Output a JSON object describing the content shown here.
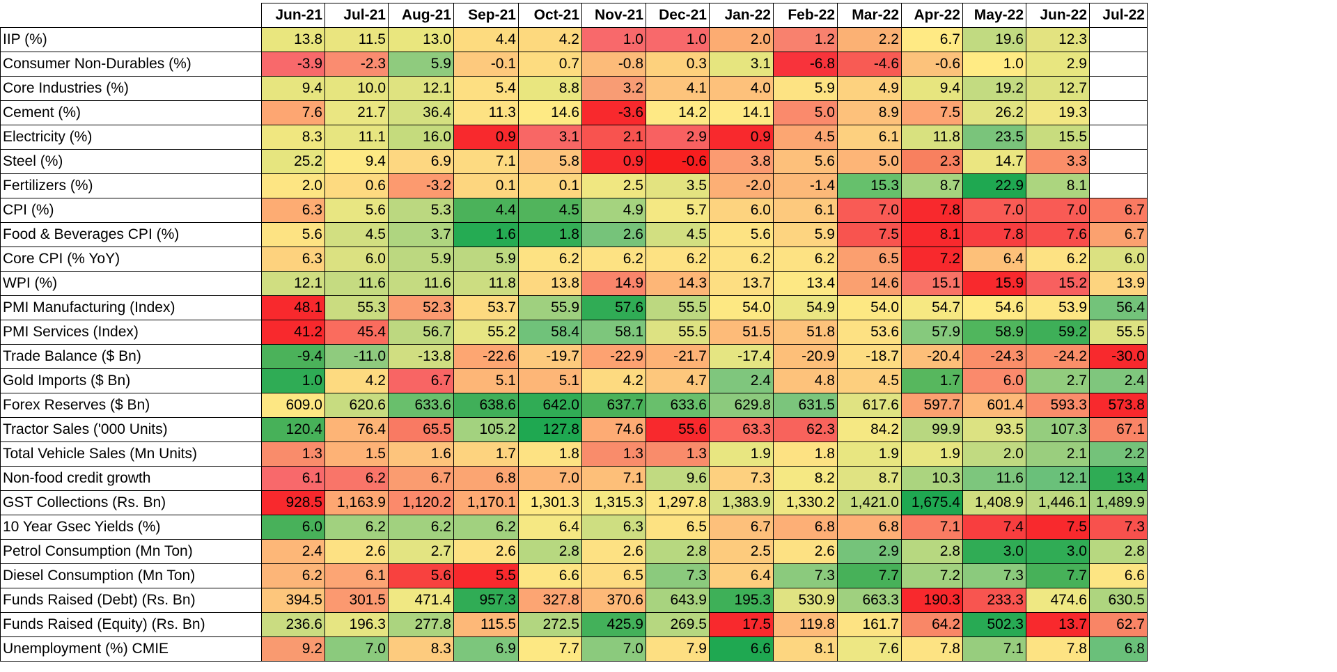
{
  "chart_data": {
    "type": "heatmap",
    "categories": [
      "Jun-21",
      "Jul-21",
      "Aug-21",
      "Sep-21",
      "Oct-21",
      "Nov-21",
      "Dec-21",
      "Jan-22",
      "Feb-22",
      "Mar-22",
      "Apr-22",
      "May-22",
      "Jun-22",
      "Jul-22"
    ],
    "rows": [
      {
        "name": "IIP (%)",
        "values": [
          "13.8",
          "11.5",
          "13.0",
          "4.4",
          "4.2",
          "1.0",
          "1.0",
          "2.0",
          "1.2",
          "2.2",
          "6.7",
          "19.6",
          "12.3",
          null
        ],
        "colors": [
          "#E9E67E",
          "#EAE57F",
          "#E9E67E",
          "#FDDB7F",
          "#FDD97E",
          "#F8696B",
          "#F8696B",
          "#FCAC72",
          "#F8816E",
          "#FBB174",
          "#FFEA84",
          "#C1DA81",
          "#E3E380",
          null
        ]
      },
      {
        "name": "Consumer Non-Durables (%)",
        "values": [
          "-3.9",
          "-2.3",
          "5.9",
          "-0.1",
          "0.7",
          "-0.8",
          "0.3",
          "3.1",
          "-6.8",
          "-4.6",
          "-0.6",
          "1.0",
          "2.9",
          null
        ],
        "colors": [
          "#F8696B",
          "#FA8C70",
          "#8FCB7E",
          "#FDC97D",
          "#FDDC80",
          "#FCBB79",
          "#FDD17D",
          "#E6E57F",
          "#F8333B",
          "#F85B54",
          "#FCC27B",
          "#FFEB84",
          "#E8E680",
          null
        ]
      },
      {
        "name": "Core Industries (%)",
        "values": [
          "9.4",
          "10.0",
          "12.1",
          "5.4",
          "8.8",
          "3.2",
          "4.1",
          "4.0",
          "5.9",
          "4.9",
          "9.4",
          "19.2",
          "12.7",
          null
        ],
        "colors": [
          "#E7E57F",
          "#E6E57F",
          "#DFE380",
          "#FDDF82",
          "#E9E67F",
          "#F89C74",
          "#FDC47C",
          "#FDC17B",
          "#FDE383",
          "#FDD27F",
          "#E7E57F",
          "#C3DB81",
          "#DDE27F",
          null
        ]
      },
      {
        "name": "Cement (%)",
        "values": [
          "7.6",
          "21.7",
          "36.4",
          "11.3",
          "14.6",
          "-3.6",
          "14.2",
          "14.1",
          "5.0",
          "8.9",
          "7.5",
          "26.2",
          "19.3",
          null
        ],
        "colors": [
          "#FDA672",
          "#EAE682",
          "#D4E080",
          "#FDE283",
          "#FEEA84",
          "#F8292D",
          "#FEE985",
          "#FEE985",
          "#FA8A6C",
          "#FDC17B",
          "#FDA472",
          "#E1E381",
          "#F2E783",
          null
        ]
      },
      {
        "name": "Electricity (%)",
        "values": [
          "8.3",
          "11.1",
          "16.0",
          "0.9",
          "3.1",
          "2.1",
          "2.9",
          "0.9",
          "4.5",
          "6.1",
          "11.8",
          "23.5",
          "15.5",
          null
        ],
        "colors": [
          "#F0E780",
          "#E7E580",
          "#C5DB7D",
          "#F8292D",
          "#F86765",
          "#F8534F",
          "#F86161",
          "#F8292D",
          "#FCA672",
          "#FDD07F",
          "#D8E17F",
          "#7AC47B",
          "#C8DC7E",
          null
        ]
      },
      {
        "name": "Steel (%)",
        "values": [
          "25.2",
          "9.4",
          "6.9",
          "7.1",
          "5.8",
          "0.9",
          "-0.6",
          "3.8",
          "5.6",
          "5.0",
          "2.3",
          "14.7",
          "3.3",
          null
        ],
        "colors": [
          "#E6E57F",
          "#FDE984",
          "#FDD781",
          "#FDDA81",
          "#FDC47C",
          "#F8292D",
          "#F81E1F",
          "#FB9B71",
          "#FDC07B",
          "#FDB577",
          "#F8805F",
          "#EBE681",
          "#FA8E69",
          null
        ]
      },
      {
        "name": "Fertilizers (%)",
        "values": [
          "2.0",
          "0.6",
          "-3.2",
          "0.1",
          "0.1",
          "2.5",
          "3.5",
          "-2.0",
          "-1.4",
          "15.3",
          "8.7",
          "22.9",
          "8.1",
          null
        ],
        "colors": [
          "#FDE583",
          "#FDDA80",
          "#FC9A6F",
          "#FDD67F",
          "#FDD67F",
          "#F0E781",
          "#E3E380",
          "#FCAF75",
          "#FCB978",
          "#66C06C",
          "#A5D37F",
          "#1FA851",
          "#ACD57F",
          null
        ]
      },
      {
        "name": "CPI (%)",
        "values": [
          "6.3",
          "5.6",
          "5.3",
          "4.4",
          "4.5",
          "4.9",
          "5.7",
          "6.0",
          "6.1",
          "7.0",
          "7.8",
          "7.0",
          "7.0",
          "6.7"
        ],
        "colors": [
          "#FDAC73",
          "#E8E682",
          "#BBD880",
          "#4BB25A",
          "#51B45C",
          "#A5D37F",
          "#F4E883",
          "#FDD37F",
          "#FDC97D",
          "#F95B55",
          "#F8292D",
          "#F95B55",
          "#F95B55",
          "#FA7A62"
        ]
      },
      {
        "name": "Food & Beverages CPI (%)",
        "values": [
          "5.6",
          "4.5",
          "3.7",
          "1.6",
          "1.8",
          "2.6",
          "4.5",
          "5.6",
          "5.9",
          "7.5",
          "8.1",
          "7.8",
          "7.6",
          "6.7"
        ],
        "colors": [
          "#FDE383",
          "#D2DF81",
          "#AFD580",
          "#25AB53",
          "#33AE56",
          "#76C37A",
          "#D2DF81",
          "#FDE383",
          "#FDD480",
          "#F8544F",
          "#F8292D",
          "#F83D40",
          "#F84D4B",
          "#FBA16F"
        ]
      },
      {
        "name": "Core CPI (% YoY)",
        "values": [
          "6.3",
          "6.0",
          "5.9",
          "5.9",
          "6.2",
          "6.2",
          "6.2",
          "6.2",
          "6.2",
          "6.5",
          "7.2",
          "6.4",
          "6.2",
          "6.0"
        ],
        "colors": [
          "#FDD27E",
          "#DBE181",
          "#BCD880",
          "#BCD880",
          "#FDE283",
          "#FDE283",
          "#FDE283",
          "#FDE283",
          "#FDE283",
          "#FB9F6F",
          "#F8292D",
          "#FDC079",
          "#FDE283",
          "#DBE181"
        ]
      },
      {
        "name": "WPI (%)",
        "values": [
          "12.1",
          "11.6",
          "11.6",
          "11.8",
          "13.8",
          "14.9",
          "14.3",
          "13.7",
          "13.4",
          "14.6",
          "15.1",
          "15.9",
          "15.2",
          "13.9"
        ],
        "colors": [
          "#D0DE81",
          "#C5DB81",
          "#C5DB81",
          "#CCDD81",
          "#FDD880",
          "#FA856B",
          "#FDB677",
          "#FDDE82",
          "#FDE884",
          "#FAA070",
          "#F97266",
          "#F8292D",
          "#F8605F",
          "#FDD47F"
        ]
      },
      {
        "name": "PMI Manufacturing (Index)",
        "values": [
          "48.1",
          "55.3",
          "52.3",
          "53.7",
          "55.9",
          "57.6",
          "55.5",
          "54.0",
          "54.9",
          "54.0",
          "54.7",
          "54.6",
          "53.9",
          "56.4"
        ],
        "colors": [
          "#F8292D",
          "#CADC80",
          "#FB9B70",
          "#FDDA80",
          "#9FD07F",
          "#30AC55",
          "#BCD880",
          "#FDE883",
          "#EBE682",
          "#FDE883",
          "#F6E882",
          "#FEEA84",
          "#FDE683",
          "#73C37A"
        ]
      },
      {
        "name": "PMI Services (Index)",
        "values": [
          "41.2",
          "45.4",
          "56.7",
          "55.2",
          "58.4",
          "58.1",
          "55.5",
          "51.5",
          "51.8",
          "53.6",
          "57.9",
          "58.9",
          "59.2",
          "55.5"
        ],
        "colors": [
          "#F8292D",
          "#FA6C5E",
          "#BDD880",
          "#E6E583",
          "#70C27A",
          "#7DC67C",
          "#DDE282",
          "#FDBB79",
          "#FDC27B",
          "#FDE183",
          "#86C97D",
          "#50B65D",
          "#3EAF58",
          "#DDE282"
        ]
      },
      {
        "name": "Trade Balance ($ Bn)",
        "values": [
          "-9.4",
          "-11.0",
          "-13.8",
          "-22.6",
          "-19.7",
          "-22.9",
          "-21.7",
          "-17.4",
          "-20.9",
          "-18.7",
          "-20.4",
          "-24.3",
          "-24.2",
          "-30.0"
        ],
        "colors": [
          "#4BB25A",
          "#8FCB7E",
          "#D0DE81",
          "#FDA672",
          "#FDCA7D",
          "#FDA271",
          "#FDB275",
          "#E5E582",
          "#FDBF79",
          "#FDDD82",
          "#FDBF79",
          "#FA8E69",
          "#FA8E69",
          "#F8292D"
        ]
      },
      {
        "name": "Gold Imports ($ Bn)",
        "values": [
          "1.0",
          "4.2",
          "6.7",
          "5.1",
          "5.1",
          "4.2",
          "4.7",
          "2.4",
          "4.8",
          "4.5",
          "1.7",
          "6.0",
          "2.7",
          "2.4"
        ],
        "colors": [
          "#2FAC55",
          "#FDDA80",
          "#F86564",
          "#FDB677",
          "#FDB677",
          "#FDDA80",
          "#FDC77C",
          "#7FC67D",
          "#FDC27B",
          "#FDCF7E",
          "#57B75E",
          "#FA8A6C",
          "#92CC7E",
          "#7FC67D"
        ]
      },
      {
        "name": "Forex Reserves ($ Bn)",
        "values": [
          "609.0",
          "620.6",
          "633.6",
          "638.6",
          "642.0",
          "637.7",
          "633.6",
          "629.8",
          "631.5",
          "617.6",
          "597.7",
          "601.4",
          "593.3",
          "573.8"
        ],
        "colors": [
          "#FDE783",
          "#C7DC80",
          "#69BF6C",
          "#40AF59",
          "#30AC55",
          "#4AB25A",
          "#69BF6C",
          "#8CCA7D",
          "#7BC57C",
          "#E0E382",
          "#FBA070",
          "#FDB978",
          "#FA8C6B",
          "#F8292D"
        ]
      },
      {
        "name": "Tractor Sales ('000 Units)",
        "values": [
          "120.4",
          "76.4",
          "65.5",
          "105.2",
          "127.8",
          "74.6",
          "55.6",
          "63.3",
          "62.3",
          "84.2",
          "99.9",
          "93.5",
          "107.3",
          "67.1"
        ],
        "colors": [
          "#47B159",
          "#FDB476",
          "#F97A63",
          "#A3D27F",
          "#1FA851",
          "#FDAB74",
          "#F8292D",
          "#FA6A5F",
          "#F8635C",
          "#F5E883",
          "#B8D780",
          "#DCE282",
          "#95CD7E",
          "#F98466"
        ]
      },
      {
        "name": "Total Vehicle Sales (Mn Units)",
        "values": [
          "1.3",
          "1.5",
          "1.6",
          "1.7",
          "1.8",
          "1.3",
          "1.3",
          "1.9",
          "1.8",
          "1.9",
          "1.9",
          "2.0",
          "2.1",
          "2.2"
        ],
        "colors": [
          "#F98C6B",
          "#FDB276",
          "#FDC47C",
          "#FDD37F",
          "#FDE283",
          "#F98C6B",
          "#F98C6B",
          "#E8E681",
          "#FDE283",
          "#E8E681",
          "#E8E681",
          "#C1DA81",
          "#9ACE7E",
          "#74C27A"
        ]
      },
      {
        "name": "Non-food credit growth",
        "values": [
          "6.1",
          "6.2",
          "6.7",
          "6.8",
          "7.0",
          "7.1",
          "9.6",
          "7.3",
          "8.2",
          "8.7",
          "10.3",
          "11.6",
          "12.1",
          "13.4"
        ],
        "colors": [
          "#F8696B",
          "#F97569",
          "#FA9C70",
          "#FBA572",
          "#FDB677",
          "#FDBF79",
          "#C1DA81",
          "#FDD07F",
          "#F5E883",
          "#E0E382",
          "#ABD47F",
          "#7DC67D",
          "#6AC07A",
          "#2FAC55"
        ]
      },
      {
        "name": "GST Collections (Rs. Bn)",
        "values": [
          "928.5",
          "1,163.9",
          "1,120.2",
          "1,170.1",
          "1,301.3",
          "1,315.3",
          "1,297.8",
          "1,383.9",
          "1,330.2",
          "1,421.0",
          "1,675.4",
          "1,408.9",
          "1,446.1",
          "1,489.9"
        ],
        "colors": [
          "#F8292D",
          "#FDA772",
          "#FB8A6B",
          "#FDAA73",
          "#FEE984",
          "#F5E883",
          "#FDE583",
          "#D7E082",
          "#F0E783",
          "#C8DC80",
          "#1FA851",
          "#CFDE80",
          "#BDD880",
          "#A7D37F"
        ]
      },
      {
        "name": "10 Year Gsec Yields (%)",
        "values": [
          "6.0",
          "6.2",
          "6.2",
          "6.2",
          "6.4",
          "6.3",
          "6.5",
          "6.7",
          "6.8",
          "6.8",
          "7.1",
          "7.4",
          "7.5",
          "7.3"
        ],
        "colors": [
          "#48B15A",
          "#A1D17F",
          "#A1D17F",
          "#A1D17F",
          "#F5E883",
          "#CEDE81",
          "#FDE282",
          "#FDC07B",
          "#FDAF76",
          "#FDAF76",
          "#FA7C63",
          "#F83E3F",
          "#F8292D",
          "#F8514D"
        ]
      },
      {
        "name": "Petrol Consumption (Mn Ton)",
        "values": [
          "2.4",
          "2.6",
          "2.7",
          "2.6",
          "2.8",
          "2.6",
          "2.8",
          "2.5",
          "2.6",
          "2.9",
          "2.8",
          "3.0",
          "3.0",
          "2.8"
        ],
        "colors": [
          "#FDB778",
          "#FDE183",
          "#E3E482",
          "#FDE183",
          "#B7D880",
          "#FDE183",
          "#B7D880",
          "#FDCB7D",
          "#FDE183",
          "#75C37A",
          "#B7D880",
          "#30AC55",
          "#30AC55",
          "#B7D880"
        ]
      },
      {
        "name": "Diesel Consumption (Mn Ton)",
        "values": [
          "6.2",
          "6.1",
          "5.6",
          "5.5",
          "6.6",
          "6.5",
          "7.3",
          "6.4",
          "7.3",
          "7.7",
          "7.2",
          "7.3",
          "7.7",
          "6.6"
        ],
        "colors": [
          "#FCB578",
          "#FCA574",
          "#F8413F",
          "#F8292D",
          "#FDE583",
          "#FDDC81",
          "#8BCA7D",
          "#FDCE7E",
          "#8BCA7D",
          "#47B159",
          "#A2D17F",
          "#8BCA7D",
          "#47B159",
          "#FDE583"
        ]
      },
      {
        "name": "Funds Raised (Debt) (Rs. Bn)",
        "values": [
          "394.5",
          "301.5",
          "471.4",
          "957.3",
          "327.8",
          "370.6",
          "643.9",
          "195.3",
          "530.9",
          "663.3",
          "190.3",
          "233.3",
          "474.6",
          "630.5"
        ],
        "colors": [
          "#FDC67C",
          "#FB9970",
          "#F0E883",
          "#30AC55",
          "#FCA573",
          "#FDB978",
          "#A8D37F",
          "#3EB058",
          "#E0E382",
          "#9FD07F",
          "#F8292D",
          "#F85550",
          "#EFE883",
          "#AED57F"
        ]
      },
      {
        "name": "Funds Raised (Equity) (Rs. Bn)",
        "values": [
          "236.6",
          "196.3",
          "277.8",
          "115.5",
          "272.5",
          "425.9",
          "269.5",
          "17.5",
          "119.8",
          "161.7",
          "64.2",
          "502.3",
          "13.7",
          "62.7"
        ],
        "colors": [
          "#CADC81",
          "#E6E582",
          "#ABD47F",
          "#FDB878",
          "#B2D680",
          "#43B15A",
          "#B6D780",
          "#F8292D",
          "#FDBB79",
          "#FDE383",
          "#F98767",
          "#28AA54",
          "#F8292D",
          "#F98566"
        ]
      },
      {
        "name": "Unemployment (%) CMIE",
        "values": [
          "9.2",
          "7.0",
          "8.3",
          "6.9",
          "7.7",
          "7.0",
          "7.9",
          "6.6",
          "8.1",
          "7.6",
          "7.8",
          "7.1",
          "7.8",
          "6.8"
        ],
        "colors": [
          "#F99A70",
          "#8BCA7D",
          "#FDCB7E",
          "#7CC67C",
          "#FDE883",
          "#8BCA7D",
          "#FDDF82",
          "#1FA851",
          "#FDD680",
          "#EDE783",
          "#FDE383",
          "#97CD7E",
          "#FDE383",
          "#6AC07A"
        ]
      }
    ]
  }
}
